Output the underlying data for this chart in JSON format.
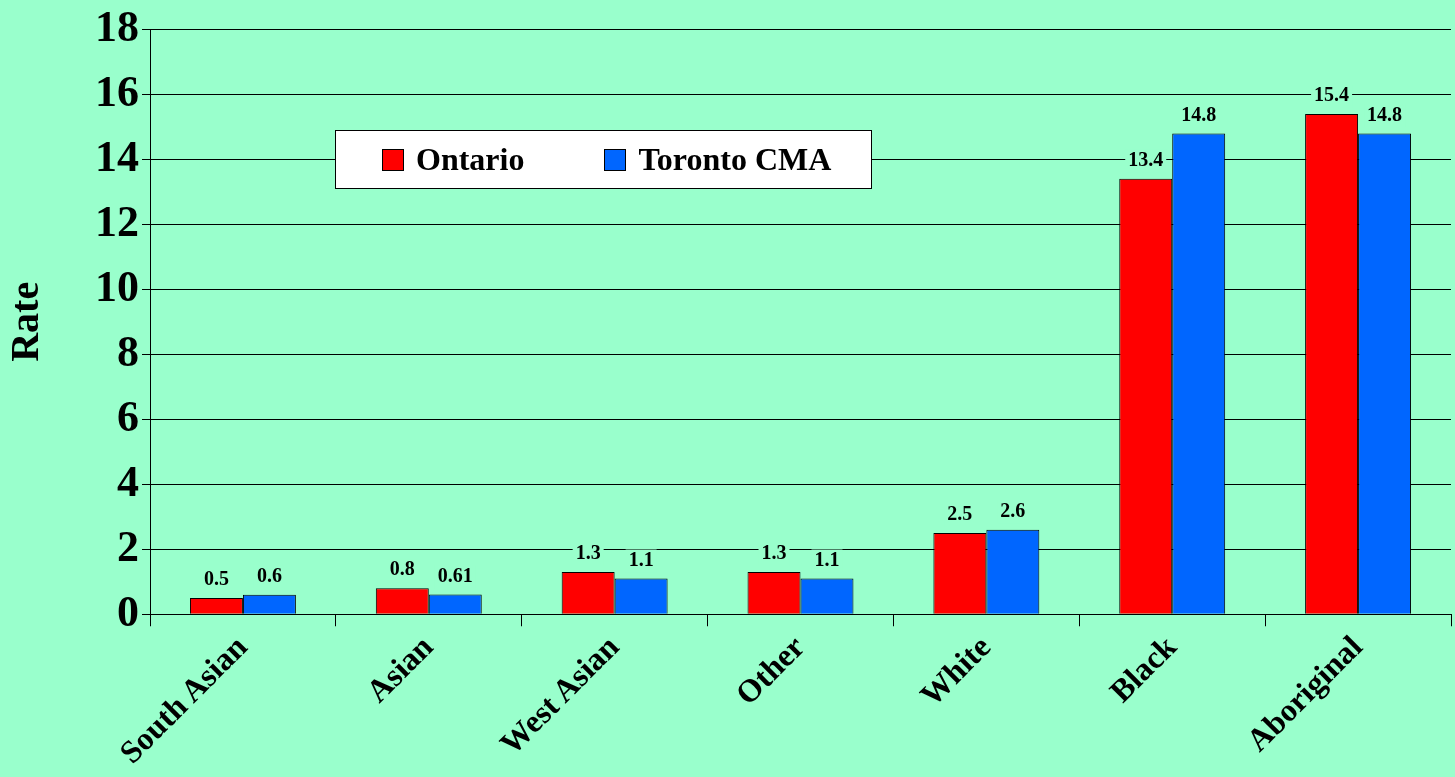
{
  "chart_data": {
    "type": "bar",
    "ylabel": "Rate",
    "categories": [
      "South Asian",
      "Asian",
      "West Asian",
      "Other",
      "White",
      "Black",
      "Aboriginal"
    ],
    "series": [
      {
        "name": "Ontario",
        "color": "#ff0000",
        "values": [
          0.5,
          0.8,
          1.3,
          1.3,
          2.5,
          13.4,
          15.4
        ]
      },
      {
        "name": "Toronto CMA",
        "color": "#0066ff",
        "values": [
          0.6,
          0.61,
          1.1,
          1.1,
          2.6,
          14.8,
          14.8
        ]
      }
    ],
    "ylim": [
      0,
      18
    ],
    "yticks": [
      0,
      2,
      4,
      6,
      8,
      10,
      12,
      14,
      16,
      18
    ],
    "grid": "y",
    "legend": "top left",
    "data_labels": true
  }
}
